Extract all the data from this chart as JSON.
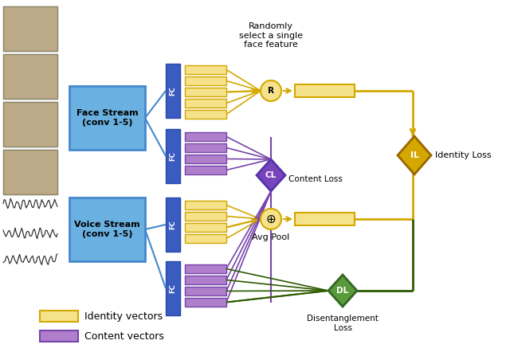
{
  "bg_color": "#ffffff",
  "blue_stream": "#6ab0e0",
  "blue_stream_edge": "#4488cc",
  "fc_blue": "#3a5bbf",
  "fc_blue_edge": "#2a4aaa",
  "ident_fill": "#f5e28a",
  "ident_edge": "#d4a800",
  "cont_fill": "#b07fcc",
  "cont_edge": "#7744aa",
  "arrow_gold": "#d4a800",
  "arrow_purple": "#7744aa",
  "arrow_green": "#2d5a00",
  "cl_fill": "#7744bb",
  "cl_edge": "#5533aa",
  "il_fill": "#d4a800",
  "il_edge": "#996600",
  "dl_fill": "#5a9a3a",
  "dl_edge": "#336622",
  "circ_fill": "#f5e28a",
  "circ_edge": "#d4a800",
  "texts": {
    "randomly": "Randomly\nselect a single\nface feature",
    "content_loss": "Content Loss",
    "identity_loss": "Identity Loss",
    "avg_pool": "Avg Pool",
    "disentanglement_loss": "Disentanglement\nLoss",
    "face_stream": "Face Stream\n(conv 1-5)",
    "voice_stream": "Voice Stream\n(conv 1-5)",
    "fc": "FC",
    "r": "R",
    "cl": "CL",
    "il": "IL",
    "dl": "DL",
    "legend_ident": "Identity vectors",
    "legend_cont": "Content vectors"
  }
}
